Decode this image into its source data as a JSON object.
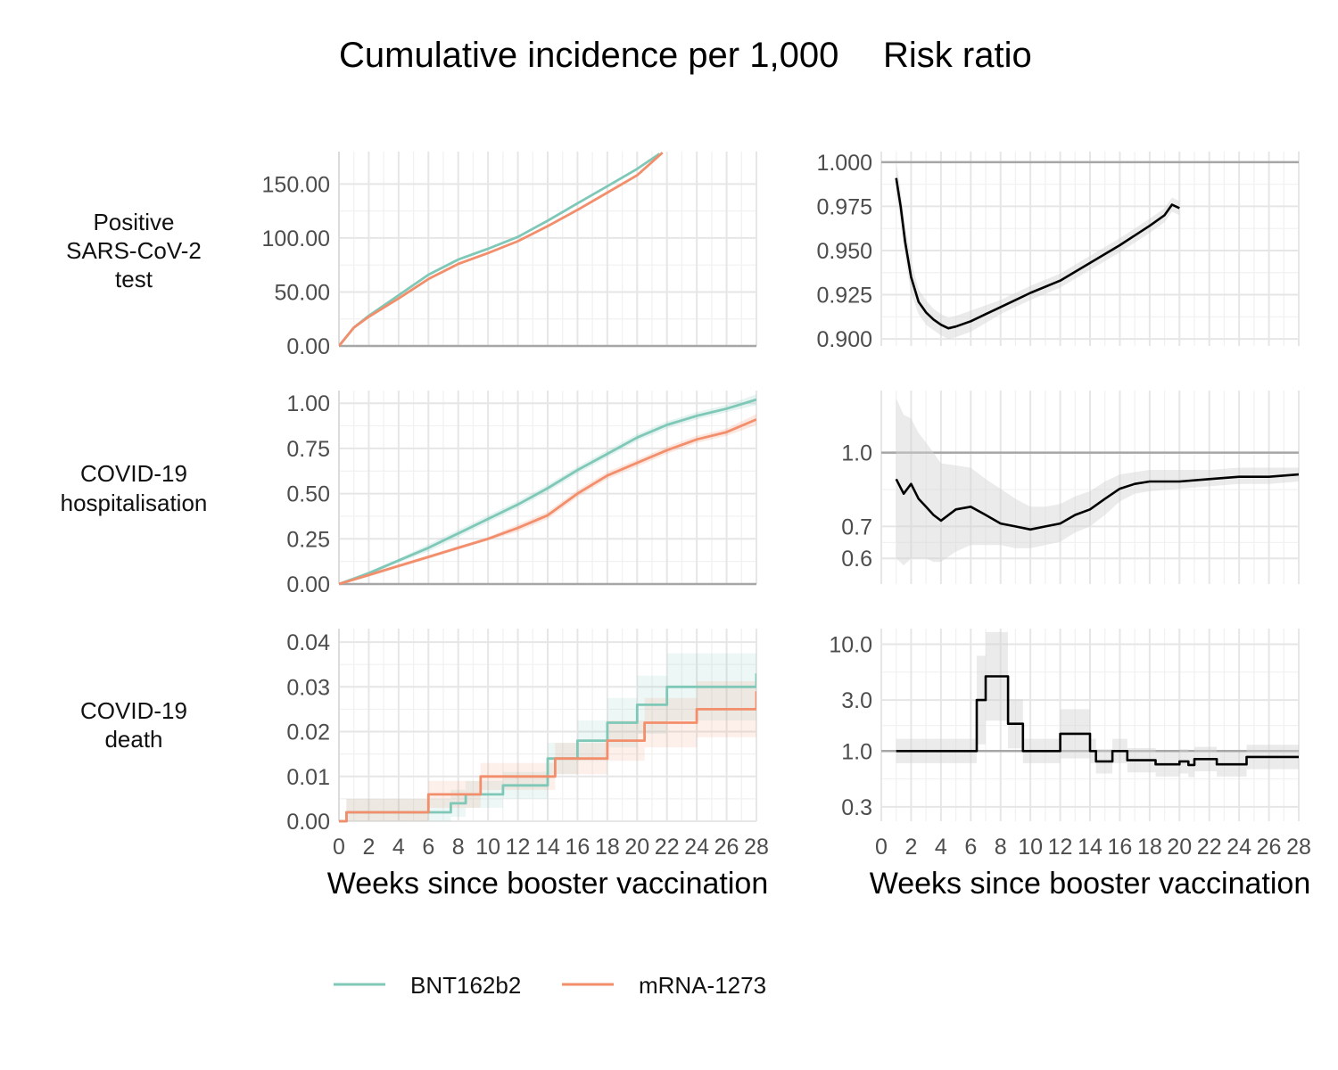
{
  "titles": {
    "left": "Cumulative incidence per 1,000",
    "right": "Risk ratio"
  },
  "row_labels": [
    [
      "Positive",
      "SARS-CoV-2",
      "test"
    ],
    [
      "COVID-19",
      "hospitalisation"
    ],
    [
      "COVID-19",
      "death"
    ]
  ],
  "xlabel": "Weeks since booster vaccination",
  "legend": [
    {
      "label": "BNT162b2",
      "color": "#7fc8b8"
    },
    {
      "label": "mRNA-1273",
      "color": "#f28e6b"
    }
  ],
  "chart_data": [
    {
      "type": "line",
      "panel": "cumulative-incidence-positive-test",
      "x_ticks": [
        0,
        2,
        4,
        6,
        8,
        10,
        12,
        14,
        16,
        18,
        20,
        22,
        24,
        26,
        28
      ],
      "xlim": [
        0,
        28
      ],
      "ylim": [
        0,
        180
      ],
      "y_ticks": [
        0,
        50,
        100,
        150
      ],
      "y_tick_labels": [
        "0.00",
        "50.00",
        "100.00",
        "150.00"
      ],
      "series": [
        {
          "name": "BNT162b2",
          "x": [
            0,
            1,
            2,
            4,
            6,
            8,
            10,
            12,
            14,
            16,
            18,
            20,
            21.5
          ],
          "y": [
            0,
            17,
            28,
            47,
            66,
            80,
            90,
            101,
            116,
            132,
            148,
            164,
            178
          ]
        },
        {
          "name": "mRNA-1273",
          "x": [
            0,
            1,
            2,
            4,
            6,
            8,
            10,
            12,
            14,
            16,
            18,
            20,
            21.7
          ],
          "y": [
            0,
            17,
            27,
            44,
            62,
            76,
            86,
            97,
            111,
            126,
            142,
            158,
            179
          ]
        }
      ]
    },
    {
      "type": "line",
      "panel": "risk-ratio-positive-test",
      "x_ticks": [
        0,
        2,
        4,
        6,
        8,
        10,
        12,
        14,
        16,
        18,
        20,
        22,
        24,
        26,
        28
      ],
      "xlim": [
        0,
        28
      ],
      "ylim": [
        0.896,
        1.006
      ],
      "y_ticks": [
        0.9,
        0.925,
        0.95,
        0.975,
        1.0
      ],
      "y_tick_labels": [
        "0.900",
        "0.925",
        "0.950",
        "0.975",
        "1.000"
      ],
      "reference": 1.0,
      "series": [
        {
          "name": "Risk ratio",
          "x": [
            1,
            1.3,
            1.6,
            2,
            2.5,
            3,
            3.5,
            4,
            4.5,
            5,
            6,
            7,
            8,
            10,
            12,
            14,
            16,
            18,
            19,
            19.5,
            20
          ],
          "y": [
            0.991,
            0.975,
            0.955,
            0.935,
            0.921,
            0.915,
            0.911,
            0.908,
            0.906,
            0.907,
            0.91,
            0.914,
            0.918,
            0.926,
            0.933,
            0.943,
            0.953,
            0.964,
            0.97,
            0.976,
            0.974
          ],
          "lower": [
            0.982,
            0.966,
            0.946,
            0.926,
            0.914,
            0.908,
            0.905,
            0.902,
            0.9,
            0.901,
            0.904,
            0.909,
            0.914,
            0.922,
            0.929,
            0.939,
            0.949,
            0.96,
            0.966,
            0.972,
            0.97
          ],
          "upper": [
            1.0,
            0.984,
            0.964,
            0.944,
            0.928,
            0.922,
            0.917,
            0.914,
            0.912,
            0.913,
            0.916,
            0.919,
            0.922,
            0.93,
            0.937,
            0.947,
            0.957,
            0.968,
            0.974,
            0.98,
            0.978
          ]
        }
      ]
    },
    {
      "type": "line",
      "panel": "cumulative-incidence-hospitalisation",
      "x_ticks": [
        0,
        2,
        4,
        6,
        8,
        10,
        12,
        14,
        16,
        18,
        20,
        22,
        24,
        26,
        28
      ],
      "xlim": [
        0,
        28
      ],
      "ylim": [
        0,
        1.07
      ],
      "y_ticks": [
        0,
        0.25,
        0.5,
        0.75,
        1.0
      ],
      "y_tick_labels": [
        "0.00",
        "0.25",
        "0.50",
        "0.75",
        "1.00"
      ],
      "series": [
        {
          "name": "BNT162b2",
          "x": [
            0,
            2,
            4,
            6,
            8,
            10,
            12,
            14,
            16,
            18,
            20,
            22,
            24,
            26,
            28
          ],
          "y": [
            0,
            0.06,
            0.13,
            0.2,
            0.28,
            0.36,
            0.44,
            0.53,
            0.63,
            0.72,
            0.81,
            0.88,
            0.93,
            0.97,
            1.02
          ],
          "lower": [
            0,
            0.05,
            0.12,
            0.18,
            0.26,
            0.34,
            0.42,
            0.51,
            0.61,
            0.7,
            0.79,
            0.86,
            0.91,
            0.95,
            0.99
          ],
          "upper": [
            0,
            0.07,
            0.14,
            0.22,
            0.3,
            0.38,
            0.46,
            0.55,
            0.65,
            0.74,
            0.83,
            0.9,
            0.95,
            0.99,
            1.05
          ]
        },
        {
          "name": "mRNA-1273",
          "x": [
            0,
            2,
            4,
            6,
            8,
            10,
            12,
            14,
            16,
            18,
            20,
            22,
            24,
            26,
            28
          ],
          "y": [
            0,
            0.05,
            0.1,
            0.15,
            0.2,
            0.25,
            0.31,
            0.38,
            0.5,
            0.6,
            0.67,
            0.74,
            0.8,
            0.84,
            0.91
          ],
          "lower": [
            0,
            0.04,
            0.09,
            0.14,
            0.19,
            0.24,
            0.29,
            0.36,
            0.48,
            0.58,
            0.65,
            0.72,
            0.78,
            0.82,
            0.88
          ],
          "upper": [
            0,
            0.06,
            0.11,
            0.16,
            0.21,
            0.26,
            0.33,
            0.4,
            0.52,
            0.62,
            0.69,
            0.76,
            0.82,
            0.86,
            0.94
          ]
        }
      ]
    },
    {
      "type": "line",
      "panel": "risk-ratio-hospitalisation",
      "scale": "log",
      "x_ticks": [
        0,
        2,
        4,
        6,
        8,
        10,
        12,
        14,
        16,
        18,
        20,
        22,
        24,
        26,
        28
      ],
      "xlim": [
        0,
        28
      ],
      "ylim": [
        0.53,
        1.35
      ],
      "y_ticks": [
        0.6,
        0.7,
        1.0
      ],
      "y_tick_labels": [
        "0.6",
        "0.7",
        "1.0"
      ],
      "reference": 1.0,
      "series": [
        {
          "name": "Risk ratio",
          "x": [
            1,
            1.5,
            2,
            2.5,
            3,
            3.5,
            4,
            5,
            6,
            7,
            8,
            9,
            10,
            11,
            12,
            13,
            14,
            15,
            16,
            17,
            18,
            20,
            22,
            24,
            26,
            28
          ],
          "y": [
            0.88,
            0.82,
            0.86,
            0.8,
            0.77,
            0.74,
            0.72,
            0.76,
            0.77,
            0.74,
            0.71,
            0.7,
            0.69,
            0.7,
            0.71,
            0.74,
            0.76,
            0.8,
            0.84,
            0.86,
            0.87,
            0.87,
            0.88,
            0.89,
            0.89,
            0.9
          ],
          "lower": [
            0.6,
            0.58,
            0.6,
            0.6,
            0.6,
            0.59,
            0.59,
            0.62,
            0.64,
            0.64,
            0.64,
            0.63,
            0.63,
            0.64,
            0.65,
            0.68,
            0.7,
            0.74,
            0.79,
            0.82,
            0.83,
            0.84,
            0.85,
            0.86,
            0.86,
            0.87
          ],
          "upper": [
            1.3,
            1.2,
            1.18,
            1.1,
            1.05,
            1.0,
            0.95,
            0.94,
            0.93,
            0.88,
            0.84,
            0.8,
            0.77,
            0.77,
            0.78,
            0.81,
            0.83,
            0.87,
            0.9,
            0.91,
            0.92,
            0.92,
            0.92,
            0.93,
            0.93,
            0.93
          ]
        }
      ]
    },
    {
      "type": "line",
      "panel": "cumulative-incidence-death",
      "x_ticks": [
        0,
        2,
        4,
        6,
        8,
        10,
        12,
        14,
        16,
        18,
        20,
        22,
        24,
        26,
        28
      ],
      "xlim": [
        0,
        28
      ],
      "ylim": [
        0,
        0.043
      ],
      "y_ticks": [
        0,
        0.01,
        0.02,
        0.03,
        0.04
      ],
      "y_tick_labels": [
        "0.00",
        "0.01",
        "0.02",
        "0.03",
        "0.04"
      ],
      "series": [
        {
          "name": "BNT162b2",
          "x": [
            0,
            0.5,
            6.5,
            7.5,
            8.5,
            11,
            14,
            16,
            18,
            20,
            22,
            28
          ],
          "y": [
            0,
            0.002,
            0.002,
            0.004,
            0.006,
            0.008,
            0.014,
            0.018,
            0.022,
            0.026,
            0.03,
            0.033
          ]
        },
        {
          "name": "mRNA-1273",
          "x": [
            0,
            0.5,
            4.5,
            6,
            9.5,
            14.5,
            18,
            20.5,
            24,
            28
          ],
          "y": [
            0,
            0.002,
            0.002,
            0.006,
            0.01,
            0.014,
            0.018,
            0.022,
            0.025,
            0.029
          ]
        }
      ]
    },
    {
      "type": "line",
      "panel": "risk-ratio-death",
      "scale": "log",
      "x_ticks": [
        0,
        2,
        4,
        6,
        8,
        10,
        12,
        14,
        16,
        18,
        20,
        22,
        24,
        26,
        28
      ],
      "xlim": [
        0,
        28
      ],
      "ylim": [
        0.22,
        14
      ],
      "y_ticks": [
        0.3,
        1.0,
        3.0,
        10.0
      ],
      "y_tick_labels": [
        "0.3",
        "1.0",
        "3.0",
        "10.0"
      ],
      "reference": 1.0,
      "series": [
        {
          "name": "Risk ratio",
          "x": [
            1,
            4.5,
            6.4,
            7,
            8.5,
            9.5,
            12,
            14,
            14.4,
            15.5,
            16.5,
            18,
            18.4,
            20,
            20.6,
            21,
            22.5,
            24.5,
            28
          ],
          "y": [
            1.0,
            1.0,
            3.0,
            5.0,
            1.8,
            1.0,
            1.45,
            1.0,
            0.8,
            1.0,
            0.82,
            0.82,
            0.75,
            0.8,
            0.74,
            0.84,
            0.75,
            0.88,
            0.88
          ]
        }
      ]
    }
  ]
}
